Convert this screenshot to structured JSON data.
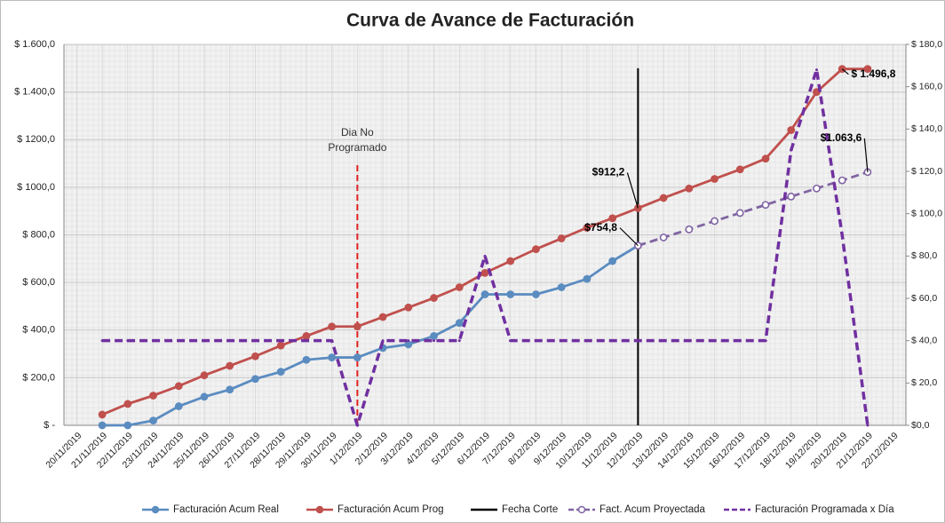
{
  "chart_data": {
    "type": "line",
    "title": "Curva de Avance de Facturación",
    "categories": [
      "20/11/2019",
      "21/11/2019",
      "22/11/2019",
      "23/11/2019",
      "24/11/2019",
      "25/11/2019",
      "26/11/2019",
      "27/11/2019",
      "28/11/2019",
      "29/11/2019",
      "30/11/2019",
      "1/12/2019",
      "2/12/2019",
      "3/12/2019",
      "4/12/2019",
      "5/12/2019",
      "6/12/2019",
      "7/12/2019",
      "8/12/2019",
      "9/12/2019",
      "10/12/2019",
      "11/12/2019",
      "12/12/2019",
      "13/12/2019",
      "14/12/2019",
      "15/12/2019",
      "16/12/2019",
      "17/12/2019",
      "18/12/2019",
      "19/12/2019",
      "20/12/2019",
      "21/12/2019",
      "22/12/2019"
    ],
    "series": [
      {
        "name": "Facturación Acum Real",
        "color": "#5b8cc0",
        "marker": "circle",
        "dashed": false,
        "values": [
          null,
          0,
          0,
          20,
          80,
          120,
          150,
          195,
          225,
          275,
          285,
          285,
          325,
          340,
          375,
          430,
          550,
          550,
          550,
          580,
          615,
          690,
          754.8,
          null,
          null,
          null,
          null,
          null,
          null,
          null,
          null,
          null,
          null
        ],
        "value_labels": [
          null,
          null,
          null,
          null,
          null,
          null,
          null,
          null,
          null,
          null,
          null,
          null,
          null,
          null,
          null,
          null,
          null,
          null,
          null,
          null,
          null,
          null,
          "$754,8",
          null,
          null,
          null,
          null,
          null,
          null,
          null,
          null,
          null,
          null
        ]
      },
      {
        "name": "Facturación Acum Prog",
        "color": "#c0504d",
        "marker": "circle",
        "dashed": false,
        "values": [
          null,
          45,
          90,
          125,
          165,
          210,
          250,
          290,
          335,
          375,
          415,
          415,
          455,
          495,
          535,
          580,
          640,
          690,
          740,
          785,
          830,
          870,
          912.2,
          955,
          995,
          1035,
          1075,
          1120,
          1240,
          1400,
          1496.8,
          1496.8,
          null
        ],
        "value_labels": [
          null,
          null,
          null,
          null,
          null,
          null,
          null,
          null,
          null,
          null,
          null,
          null,
          null,
          null,
          null,
          null,
          null,
          null,
          null,
          null,
          null,
          null,
          "$912,2",
          null,
          null,
          null,
          null,
          null,
          null,
          null,
          "$ 1.496,8",
          null,
          null
        ]
      },
      {
        "name": "Fact. Acum Proyectada",
        "color": "#8064a2",
        "marker": "hollow-circle",
        "dashed": true,
        "values": [
          null,
          null,
          null,
          null,
          null,
          null,
          null,
          null,
          null,
          null,
          null,
          null,
          null,
          null,
          null,
          null,
          null,
          null,
          null,
          null,
          null,
          null,
          754.8,
          789,
          823,
          858,
          892,
          926,
          961,
          995,
          1029,
          1063.6,
          null
        ],
        "value_labels": [
          null,
          null,
          null,
          null,
          null,
          null,
          null,
          null,
          null,
          null,
          null,
          null,
          null,
          null,
          null,
          null,
          null,
          null,
          null,
          null,
          null,
          null,
          null,
          null,
          null,
          null,
          null,
          null,
          null,
          null,
          null,
          "$1.063,6",
          null
        ]
      },
      {
        "name": "Facturación Programada x Día",
        "color": "#7030a0",
        "marker": "none",
        "dashed": true,
        "axis": "y2",
        "values": [
          null,
          40,
          40,
          40,
          40,
          40,
          40,
          40,
          40,
          40,
          40,
          0,
          40,
          40,
          40,
          40,
          80,
          40,
          40,
          40,
          40,
          40,
          40,
          40,
          40,
          40,
          40,
          40,
          130,
          168,
          90,
          0,
          null
        ]
      }
    ],
    "cutoff": {
      "name": "Fecha Corte",
      "x": "12/12/2019",
      "color": "#000000",
      "values": [
        0,
        1500
      ]
    },
    "annotation": {
      "lines": [
        "Dia No",
        "Programado"
      ],
      "x": "1/12/2019",
      "color": "#e02020",
      "values": [
        0,
        1100
      ]
    },
    "ylim": [
      0,
      1600
    ],
    "yticks": [
      {
        "value": 0,
        "label": "$ -"
      },
      {
        "value": 200,
        "label": "$ 200,0"
      },
      {
        "value": 400,
        "label": "$ 400,0"
      },
      {
        "value": 600,
        "label": "$ 600,0"
      },
      {
        "value": 800,
        "label": "$ 800,0"
      },
      {
        "value": 1000,
        "label": "$ 1000,0"
      },
      {
        "value": 1200,
        "label": "$ 1200,0"
      },
      {
        "value": 1400,
        "label": "$ 1.400,0"
      },
      {
        "value": 1600,
        "label": "$ 1.600,0"
      }
    ],
    "y2lim": [
      0,
      180
    ],
    "y2ticks": [
      {
        "value": 0,
        "label": "$0,0"
      },
      {
        "value": 20,
        "label": "$ 20,0"
      },
      {
        "value": 40,
        "label": "$ 40,0"
      },
      {
        "value": 60,
        "label": "$ 60,0"
      },
      {
        "value": 80,
        "label": "$ 80,0"
      },
      {
        "value": 100,
        "label": "$ 100,0"
      },
      {
        "value": 120,
        "label": "$ 120,0"
      },
      {
        "value": 140,
        "label": "$ 140,0"
      },
      {
        "value": 160,
        "label": "$ 160,0"
      },
      {
        "value": 180,
        "label": "$ 180,0"
      }
    ],
    "grid": true
  }
}
